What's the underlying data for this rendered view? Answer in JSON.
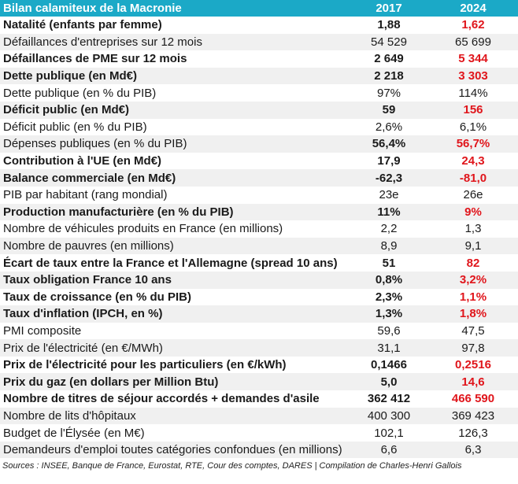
{
  "title": "Bilan calamiteux de la Macronie",
  "columns": [
    "2017",
    "2024"
  ],
  "highlight_color": "#e0151b",
  "header_color": "#1ba9c7",
  "rows": [
    {
      "label": "Natalité (enfants par femme)",
      "v2017": "1,88",
      "v2024": "1,62",
      "bold_label": true,
      "highlight": true
    },
    {
      "label": "Défaillances d'entreprises sur 12 mois",
      "v2017": "54 529",
      "v2024": "65 699",
      "bold_label": false,
      "highlight": false
    },
    {
      "label": "Défaillances de PME sur 12 mois",
      "v2017": "2 649",
      "v2024": "5 344",
      "bold_label": true,
      "highlight": true
    },
    {
      "label": "Dette publique (en Md€)",
      "v2017": "2 218",
      "v2024": "3 303",
      "bold_label": true,
      "highlight": true
    },
    {
      "label": "Dette publique (en % du PIB)",
      "v2017": "97%",
      "v2024": "114%",
      "bold_label": false,
      "highlight": false
    },
    {
      "label": "Déficit public (en Md€)",
      "v2017": "59",
      "v2024": "156",
      "bold_label": true,
      "highlight": true
    },
    {
      "label": "Déficit public (en % du PIB)",
      "v2017": "2,6%",
      "v2024": "6,1%",
      "bold_label": false,
      "highlight": false
    },
    {
      "label": "Dépenses publiques (en % du PIB)",
      "v2017": "56,4%",
      "v2024": "56,7%",
      "bold_label": false,
      "highlight": true
    },
    {
      "label": "Contribution à l'UE (en Md€)",
      "v2017": "17,9",
      "v2024": "24,3",
      "bold_label": true,
      "highlight": true
    },
    {
      "label": "Balance commerciale (en Md€)",
      "v2017": "-62,3",
      "v2024": "-81,0",
      "bold_label": true,
      "highlight": true
    },
    {
      "label": "PIB par habitant (rang mondial)",
      "v2017": "23e",
      "v2024": "26e",
      "bold_label": false,
      "highlight": false
    },
    {
      "label": "Production manufacturière (en % du PIB)",
      "v2017": "11%",
      "v2024": "9%",
      "bold_label": true,
      "highlight": true
    },
    {
      "label": "Nombre de véhicules produits en France (en millions)",
      "v2017": "2,2",
      "v2024": "1,3",
      "bold_label": false,
      "highlight": false
    },
    {
      "label": "Nombre de pauvres (en millions)",
      "v2017": "8,9",
      "v2024": "9,1",
      "bold_label": false,
      "highlight": false
    },
    {
      "label": "Écart de taux entre la France et l'Allemagne (spread 10 ans)",
      "v2017": "51",
      "v2024": "82",
      "bold_label": true,
      "highlight": true
    },
    {
      "label": "Taux obligation France 10 ans",
      "v2017": "0,8%",
      "v2024": "3,2%",
      "bold_label": true,
      "highlight": true
    },
    {
      "label": "Taux de croissance (en % du PIB)",
      "v2017": "2,3%",
      "v2024": "1,1%",
      "bold_label": true,
      "highlight": true
    },
    {
      "label": "Taux d'inflation (IPCH, en %)",
      "v2017": "1,3%",
      "v2024": "1,8%",
      "bold_label": true,
      "highlight": true
    },
    {
      "label": "PMI composite",
      "v2017": "59,6",
      "v2024": "47,5",
      "bold_label": false,
      "highlight": false
    },
    {
      "label": "Prix de l'électricité (en €/MWh)",
      "v2017": "31,1",
      "v2024": "97,8",
      "bold_label": false,
      "highlight": false
    },
    {
      "label": "Prix de l'électricité pour les particuliers (en €/kWh)",
      "v2017": "0,1466",
      "v2024": "0,2516",
      "bold_label": true,
      "highlight": true
    },
    {
      "label": "Prix du gaz (en dollars per Million Btu)",
      "v2017": "5,0",
      "v2024": "14,6",
      "bold_label": true,
      "highlight": true
    },
    {
      "label": "Nombre de titres de séjour accordés + demandes d'asile",
      "v2017": "362 412",
      "v2024": "466 590",
      "bold_label": true,
      "highlight": true
    },
    {
      "label": "Nombre de lits d'hôpitaux",
      "v2017": "400 300",
      "v2024": "369 423",
      "bold_label": false,
      "highlight": false
    },
    {
      "label": "Budget de l'Élysée (en M€)",
      "v2017": "102,1",
      "v2024": "126,3",
      "bold_label": false,
      "highlight": false
    },
    {
      "label": "Demandeurs d'emploi toutes catégories confondues (en millions)",
      "v2017": "6,6",
      "v2024": "6,3",
      "bold_label": false,
      "highlight": false
    }
  ],
  "sources": "Sources : INSEE, Banque de France, Eurostat, RTE, Cour des comptes, DARES | Compilation de Charles-Henri Gallois"
}
